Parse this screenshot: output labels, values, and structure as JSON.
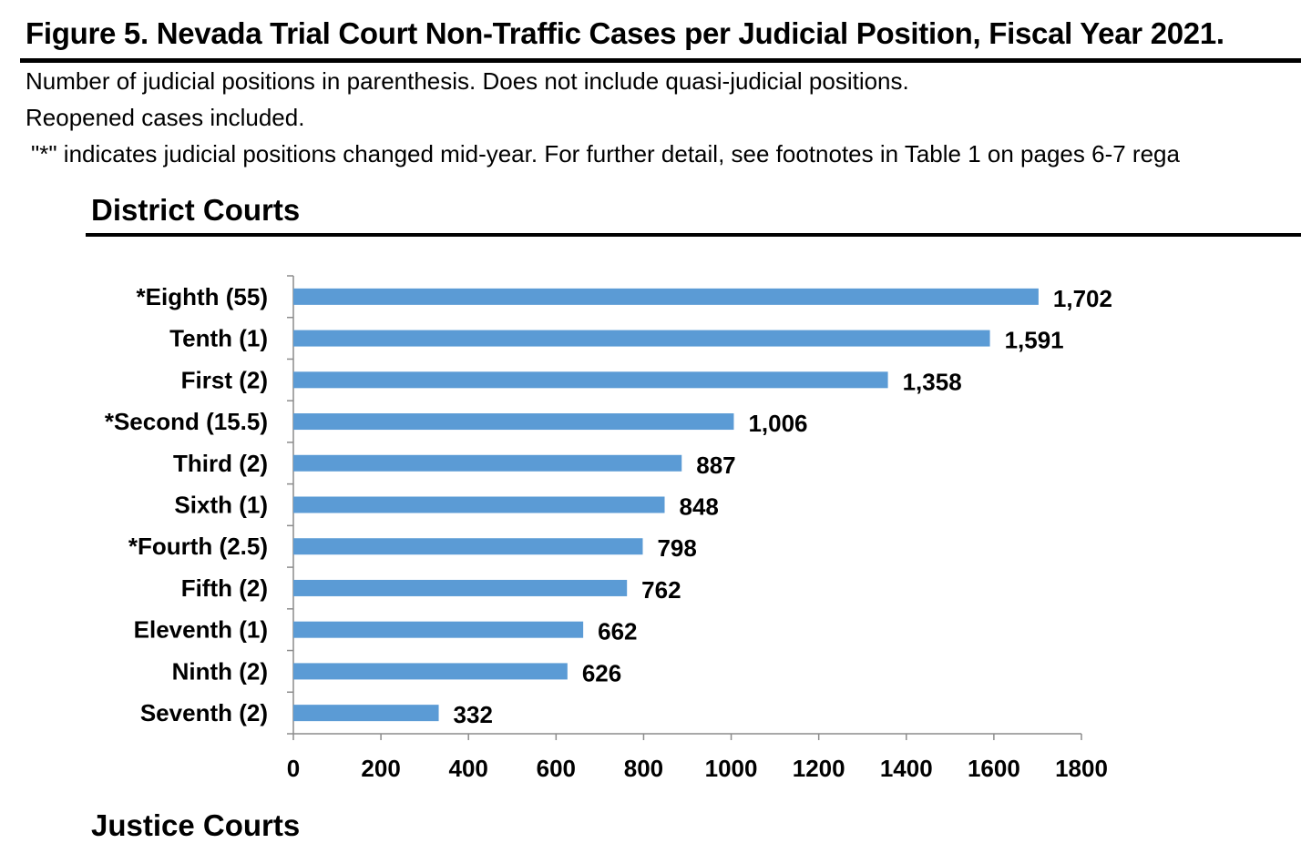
{
  "figure": {
    "title": "Figure 5. Nevada Trial Court Non-Traffic Cases per Judicial Position, Fiscal Year 2021.",
    "note_line1": "Number of judicial positions in parenthesis. Does not include quasi-judicial positions.",
    "note_line2": "Reopened cases included.",
    "note_line3": "\"*\" indicates judicial positions changed mid-year. For further detail, see footnotes in Table 1 on pages 6-7 rega"
  },
  "section": {
    "title": "District Courts",
    "next_title_partial": "Justice Courts"
  },
  "colors": {
    "bar": "#5b9bd5",
    "axis": "#8c8c8c"
  },
  "chart_data": {
    "type": "bar",
    "orientation": "horizontal",
    "title": "District Courts",
    "xlabel": "",
    "ylabel": "",
    "xlim": [
      0,
      1800
    ],
    "x_ticks": [
      0,
      200,
      400,
      600,
      800,
      1000,
      1200,
      1400,
      1600,
      1800
    ],
    "grid": false,
    "categories": [
      "*Eighth (55)",
      "Tenth (1)",
      "First (2)",
      "*Second (15.5)",
      "Third (2)",
      "Sixth (1)",
      "*Fourth (2.5)",
      "Fifth (2)",
      "Eleventh (1)",
      "Ninth (2)",
      "Seventh (2)"
    ],
    "values": [
      1702,
      1591,
      1358,
      1006,
      887,
      848,
      798,
      762,
      662,
      626,
      332
    ],
    "data_labels": [
      "1,702",
      "1,591",
      "1,358",
      "1,006",
      "887",
      "848",
      "798",
      "762",
      "662",
      "626",
      "332"
    ]
  }
}
